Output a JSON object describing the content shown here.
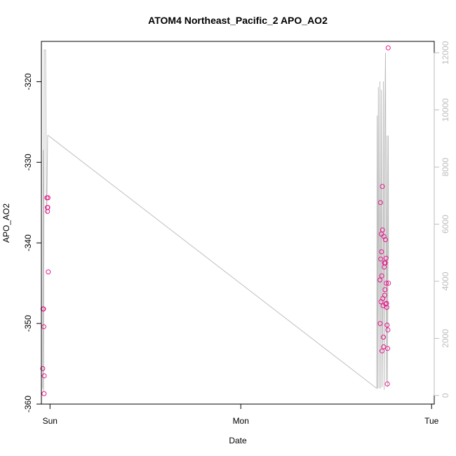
{
  "chart_data": {
    "type": "scatter",
    "title": "ATOM4 Northeast_Pacific_2 APO_AO2",
    "xlabel": "Date",
    "ylabel": "APO_AO2",
    "x_ticks": [
      "Sun",
      "Mon",
      "Tue"
    ],
    "y_ticks": [
      -320,
      -330,
      -340,
      -350,
      -360
    ],
    "ylim": [
      -360,
      -315
    ],
    "y2_ticks": [
      0,
      2000,
      4000,
      6000,
      8000,
      10000,
      12000
    ],
    "y2lim": [
      -300,
      12400
    ],
    "xlim": [
      "Sat 22:55",
      "Tue 00:20"
    ],
    "colors": {
      "points": "#e8178b",
      "secondary_line": "#bfbfbf",
      "secondary_axis": "#bdbdbd"
    },
    "series": [
      {
        "type": "scatter",
        "axis": "left",
        "x": [
          "Sat 23:05",
          "Sat 23:07",
          "Sat 23:11",
          "Sat 23:13",
          "Sat 23:15",
          "Sat 23:16",
          "Sat 23:37",
          "Sat 23:40",
          "Sat 23:41",
          "Sat 23:43",
          "Sat 23:45",
          "Sat 23:47",
          "Mon 17:30",
          "Mon 17:32",
          "Mon 17:34",
          "Mon 17:36",
          "Mon 17:38",
          "Mon 17:40",
          "Mon 17:42",
          "Mon 17:44",
          "Mon 17:46",
          "Mon 17:48",
          "Mon 17:50",
          "Mon 17:52",
          "Mon 17:54",
          "Mon 17:56",
          "Mon 17:58",
          "Mon 18:00",
          "Mon 18:02",
          "Mon 18:04",
          "Mon 18:06",
          "Mon 18:08",
          "Mon 18:10",
          "Mon 18:12",
          "Mon 18:14",
          "Mon 18:16",
          "Mon 18:18",
          "Mon 18:20",
          "Mon 18:22",
          "Mon 18:24",
          "Mon 18:26",
          "Mon 18:28",
          "Mon 18:30",
          "Mon 18:32",
          "Mon 18:34"
        ],
        "y": [
          -355.6,
          -348.2,
          -348.2,
          -350.4,
          -358.7,
          -356.5,
          -334.4,
          -335.6,
          -336.1,
          -335.6,
          -334.4,
          -343.6,
          -344.6,
          -350.0,
          -335.0,
          -342.0,
          -347.3,
          -338.9,
          -341.1,
          -344.1,
          -353.4,
          -333.0,
          -338.4,
          -346.9,
          -347.8,
          -351.7,
          -352.9,
          -339.2,
          -343.0,
          -342.5,
          -346.5,
          -345.8,
          -342.5,
          -339.6,
          -347.6,
          -341.9,
          -345.0,
          -347.5,
          -348.0,
          -350.2,
          -357.5,
          -353.1,
          -350.8,
          -315.8,
          -345.0
        ]
      },
      {
        "type": "line",
        "axis": "right",
        "x": [
          "Sat 23:05",
          "Sat 23:09",
          "Sat 23:12",
          "Sat 23:16",
          "Sat 23:21",
          "Sat 23:27",
          "Sat 23:33",
          "Sat 23:36",
          "Sat 23:42",
          "Sat 23:47",
          "Sat 23:48",
          "Mon 17:06",
          "Mon 17:09",
          "Mon 17:13",
          "Mon 17:18",
          "Mon 17:24",
          "Mon 17:30",
          "Mon 17:36",
          "Mon 17:42",
          "Mon 17:47",
          "Mon 17:53",
          "Mon 17:56",
          "Mon 18:02",
          "Mon 18:08",
          "Mon 18:12",
          "Mon 18:18",
          "Mon 18:24",
          "Mon 18:27",
          "Mon 18:31",
          "Mon 18:33",
          "Mon 18:35"
        ],
        "y": [
          250,
          8600,
          150,
          12100,
          12100,
          12100,
          6400,
          6400,
          9100,
          9100,
          9100,
          250,
          9800,
          250,
          10800,
          250,
          11000,
          250,
          10700,
          300,
          3500,
          11000,
          200,
          10200,
          12000,
          500,
          9100,
          300,
          4800,
          9100,
          4800
        ]
      }
    ]
  }
}
